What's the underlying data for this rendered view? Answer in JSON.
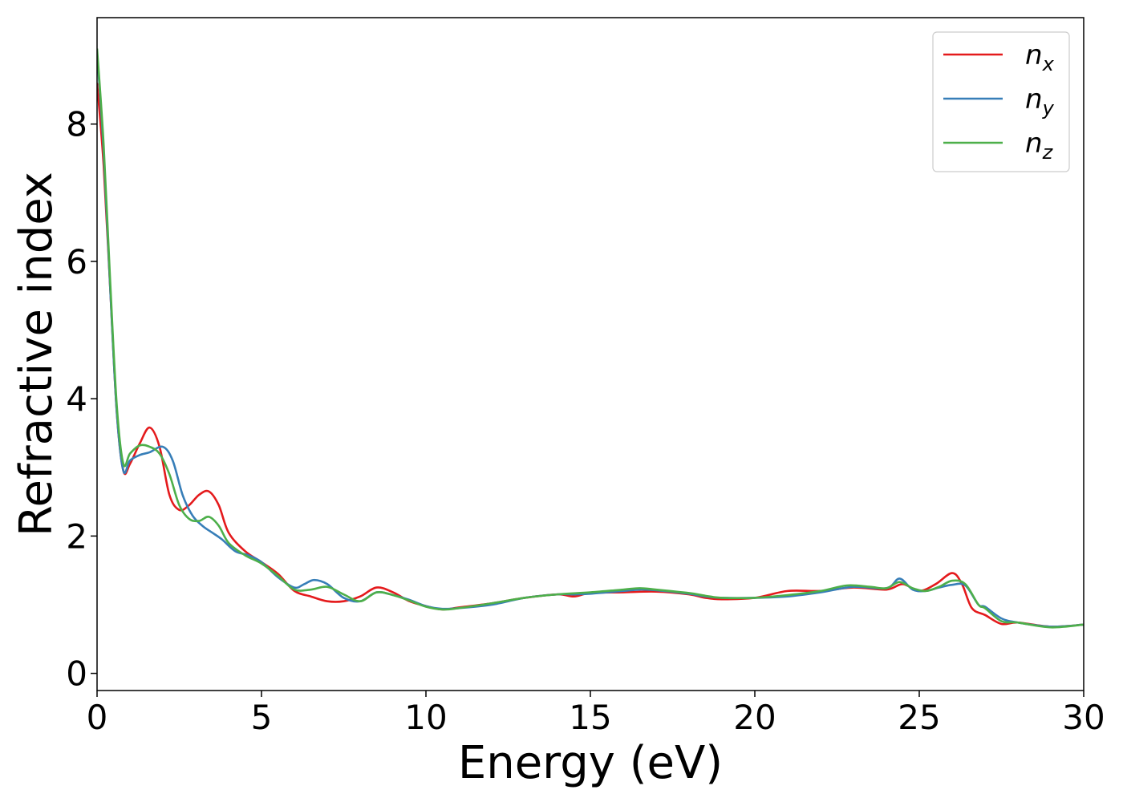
{
  "chart_data": {
    "type": "line",
    "title": "",
    "xlabel": "Energy (eV)",
    "ylabel": "Refractive index",
    "xlim": [
      0,
      30
    ],
    "ylim": [
      -0.25,
      9.55
    ],
    "xticks": [
      0,
      5,
      10,
      15,
      20,
      25,
      30
    ],
    "yticks": [
      0,
      2,
      4,
      6,
      8
    ],
    "grid": false,
    "legend_position": "top-right",
    "series": [
      {
        "name": "n_x",
        "color": "#e41a1c",
        "x": [
          0,
          0.2,
          0.4,
          0.6,
          0.8,
          1.0,
          1.3,
          1.6,
          1.9,
          2.2,
          2.5,
          2.8,
          3.1,
          3.4,
          3.7,
          4.0,
          4.5,
          5.0,
          5.5,
          6.0,
          6.5,
          7.0,
          7.5,
          8.0,
          8.5,
          9.0,
          9.5,
          10.0,
          10.5,
          11.0,
          12.0,
          13.0,
          14.0,
          14.5,
          15.0,
          16.0,
          17.0,
          18.0,
          18.5,
          19.0,
          20.0,
          21.0,
          22.0,
          23.0,
          24.0,
          24.5,
          25.0,
          25.5,
          26.0,
          26.3,
          26.6,
          27.0,
          27.5,
          28.0,
          29.0,
          30.0
        ],
        "y": [
          8.6,
          7.4,
          5.6,
          3.8,
          2.95,
          3.05,
          3.35,
          3.58,
          3.3,
          2.6,
          2.38,
          2.45,
          2.6,
          2.65,
          2.45,
          2.05,
          1.78,
          1.62,
          1.45,
          1.2,
          1.12,
          1.05,
          1.05,
          1.12,
          1.25,
          1.18,
          1.05,
          0.98,
          0.93,
          0.96,
          1.02,
          1.1,
          1.15,
          1.12,
          1.17,
          1.18,
          1.19,
          1.15,
          1.1,
          1.08,
          1.1,
          1.2,
          1.2,
          1.25,
          1.22,
          1.3,
          1.2,
          1.3,
          1.46,
          1.3,
          0.95,
          0.85,
          0.72,
          0.74,
          0.68,
          0.71
        ]
      },
      {
        "name": "n_y",
        "color": "#377eb8",
        "x": [
          0,
          0.2,
          0.4,
          0.6,
          0.8,
          1.0,
          1.3,
          1.6,
          2.0,
          2.3,
          2.6,
          2.9,
          3.2,
          3.5,
          3.8,
          4.2,
          4.6,
          5.0,
          5.5,
          6.0,
          6.3,
          6.6,
          7.0,
          7.5,
          8.0,
          8.5,
          9.0,
          9.5,
          10.0,
          10.5,
          11.0,
          12.0,
          13.0,
          14.0,
          14.5,
          15.0,
          16.0,
          16.5,
          17.0,
          18.0,
          18.5,
          19.0,
          20.0,
          21.0,
          22.0,
          23.0,
          24.0,
          24.4,
          24.8,
          25.2,
          25.6,
          26.0,
          26.4,
          26.8,
          27.0,
          27.5,
          28.0,
          29.0,
          30.0
        ],
        "y": [
          9.05,
          7.6,
          5.6,
          3.8,
          2.95,
          3.1,
          3.18,
          3.22,
          3.3,
          3.1,
          2.6,
          2.3,
          2.15,
          2.05,
          1.95,
          1.78,
          1.72,
          1.62,
          1.4,
          1.25,
          1.3,
          1.36,
          1.3,
          1.1,
          1.05,
          1.18,
          1.14,
          1.07,
          0.98,
          0.94,
          0.95,
          1.0,
          1.1,
          1.15,
          1.15,
          1.16,
          1.2,
          1.22,
          1.21,
          1.16,
          1.12,
          1.1,
          1.1,
          1.12,
          1.18,
          1.26,
          1.24,
          1.38,
          1.22,
          1.2,
          1.25,
          1.29,
          1.28,
          1.0,
          0.97,
          0.8,
          0.74,
          0.68,
          0.71
        ]
      },
      {
        "name": "n_z",
        "color": "#4daf4a",
        "x": [
          0,
          0.2,
          0.4,
          0.6,
          0.8,
          1.0,
          1.3,
          1.6,
          1.9,
          2.2,
          2.5,
          2.8,
          3.1,
          3.4,
          3.7,
          4.0,
          4.5,
          5.0,
          5.5,
          6.0,
          6.5,
          7.0,
          7.5,
          8.0,
          8.5,
          9.0,
          9.5,
          10.0,
          10.5,
          11.0,
          12.0,
          13.0,
          14.0,
          15.0,
          16.0,
          16.5,
          17.0,
          18.0,
          18.5,
          19.0,
          20.0,
          21.0,
          22.0,
          22.8,
          23.5,
          24.0,
          24.4,
          24.8,
          25.2,
          25.6,
          26.0,
          26.4,
          26.8,
          27.0,
          27.5,
          28.0,
          29.0,
          30.0
        ],
        "y": [
          9.1,
          7.7,
          5.7,
          3.9,
          3.05,
          3.2,
          3.32,
          3.3,
          3.2,
          2.9,
          2.45,
          2.25,
          2.22,
          2.28,
          2.15,
          1.9,
          1.72,
          1.6,
          1.42,
          1.22,
          1.22,
          1.26,
          1.15,
          1.05,
          1.18,
          1.14,
          1.06,
          0.97,
          0.93,
          0.95,
          1.02,
          1.1,
          1.15,
          1.18,
          1.22,
          1.24,
          1.22,
          1.17,
          1.13,
          1.1,
          1.1,
          1.14,
          1.2,
          1.28,
          1.26,
          1.24,
          1.33,
          1.24,
          1.2,
          1.26,
          1.35,
          1.3,
          1.0,
          0.95,
          0.76,
          0.74,
          0.67,
          0.71
        ]
      }
    ]
  },
  "legend": {
    "entries": [
      {
        "base": "n",
        "sub": "x",
        "color": "#e41a1c"
      },
      {
        "base": "n",
        "sub": "y",
        "color": "#377eb8"
      },
      {
        "base": "n",
        "sub": "z",
        "color": "#4daf4a"
      }
    ]
  }
}
